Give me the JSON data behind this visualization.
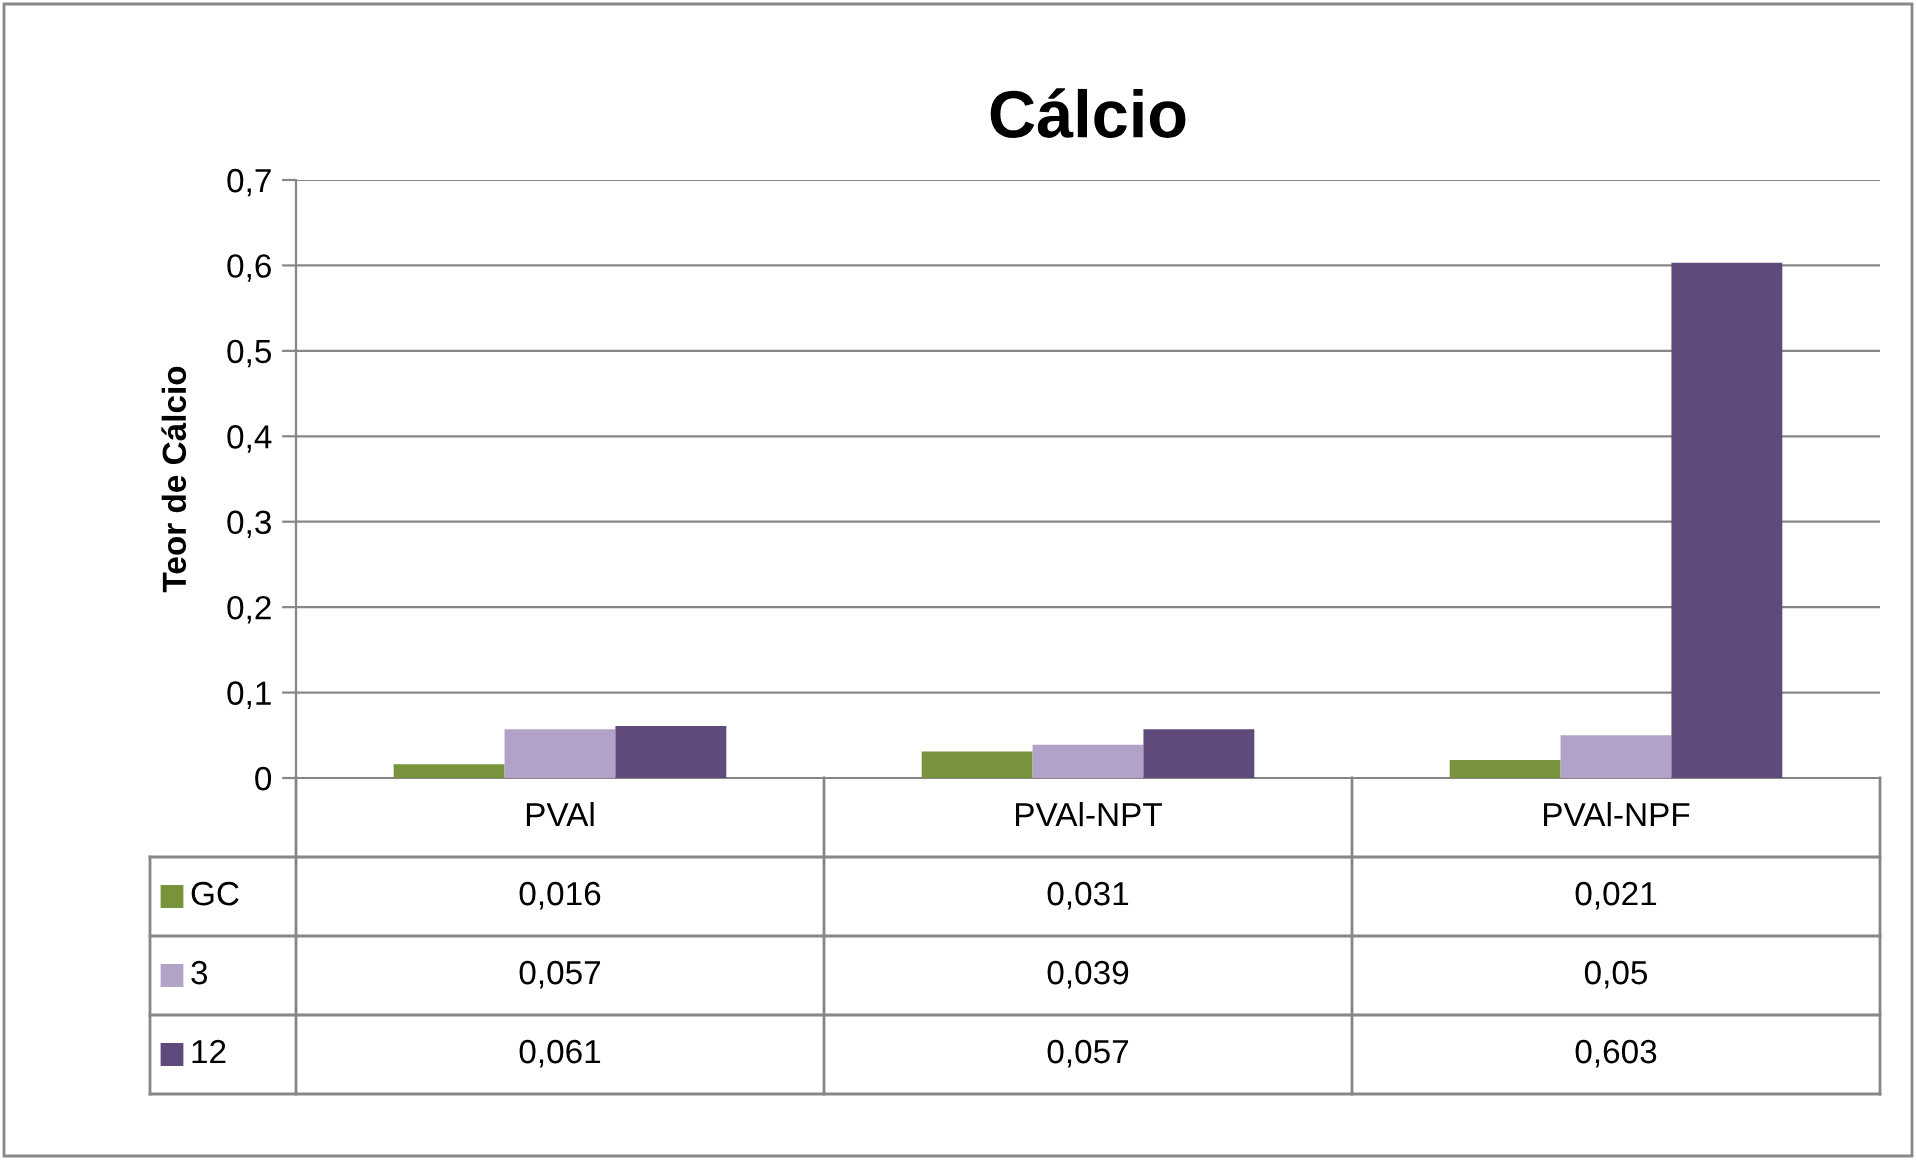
{
  "chart_data": {
    "type": "bar",
    "title": "Cálcio",
    "ylabel": "Teor de Cálcio",
    "categories": [
      "PVAl",
      "PVAl-NPT",
      "PVAl-NPF"
    ],
    "series": [
      {
        "name": "GC",
        "color": "#77933c",
        "values": [
          0.016,
          0.031,
          0.021
        ],
        "value_labels": [
          "0,016",
          "0,031",
          "0,021"
        ]
      },
      {
        "name": "3",
        "color": "#b3a2c7",
        "values": [
          0.057,
          0.039,
          0.05
        ],
        "value_labels": [
          "0,057",
          "0,039",
          "0,05"
        ]
      },
      {
        "name": "12",
        "color": "#604a7b",
        "values": [
          0.061,
          0.057,
          0.603
        ],
        "value_labels": [
          "0,061",
          "0,057",
          "0,603"
        ]
      }
    ],
    "ylim": [
      0,
      0.7
    ],
    "yticks": [
      0,
      {
        "value": 0.1,
        "label": "0,1"
      },
      {
        "value": 0.2,
        "label": "0,2"
      },
      {
        "value": 0.3,
        "label": "0,3"
      },
      {
        "value": 0.4,
        "label": "0,4"
      },
      {
        "value": 0.5,
        "label": "0,5"
      },
      {
        "value": 0.6,
        "label": "0,6"
      },
      {
        "value": 0.7,
        "label": "0,7"
      }
    ],
    "grid": "y",
    "legend": "bottom"
  }
}
